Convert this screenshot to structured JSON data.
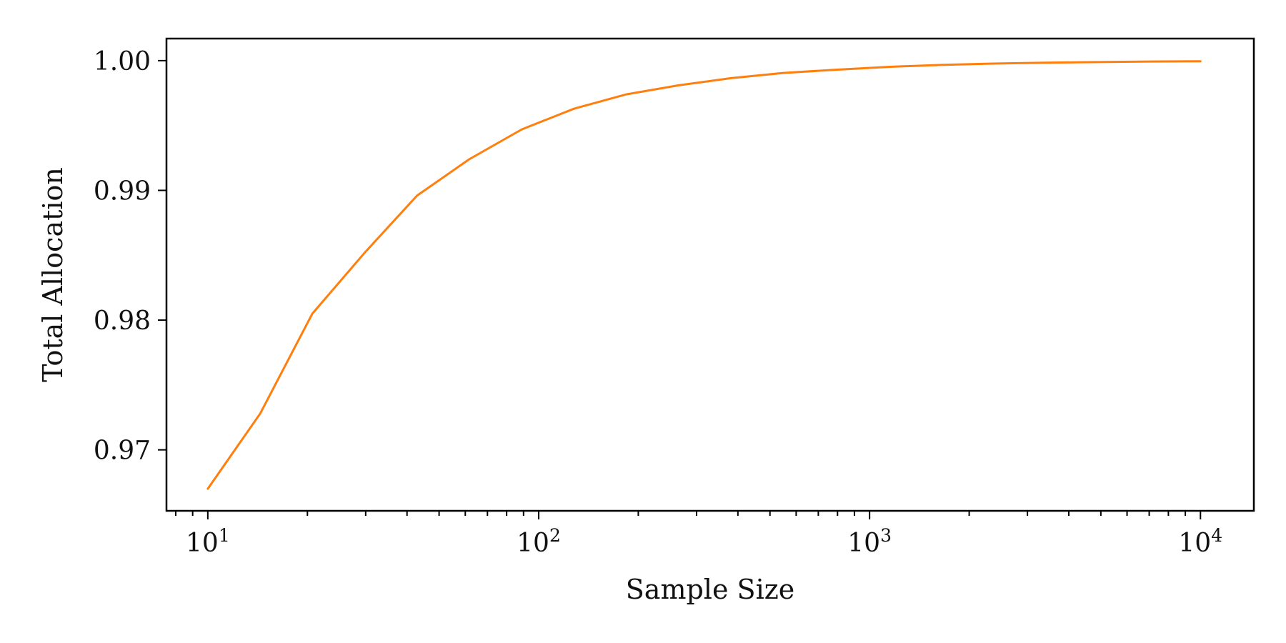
{
  "chart_data": {
    "type": "line",
    "title": "",
    "xlabel": "Sample Size",
    "ylabel": "Total Allocation",
    "xscale": "log",
    "xlim": [
      7.5,
      14500
    ],
    "ylim": [
      0.9653,
      1.0017
    ],
    "x_ticks": [
      {
        "value": 10,
        "base": "10",
        "exp": "1"
      },
      {
        "value": 100,
        "base": "10",
        "exp": "2"
      },
      {
        "value": 1000,
        "base": "10",
        "exp": "3"
      },
      {
        "value": 10000,
        "base": "10",
        "exp": "4"
      }
    ],
    "y_ticks": [
      {
        "value": 0.97,
        "label": "0.97"
      },
      {
        "value": 0.98,
        "label": "0.98"
      },
      {
        "value": 0.99,
        "label": "0.99"
      },
      {
        "value": 1.0,
        "label": "1.00"
      }
    ],
    "grid": false,
    "series": [
      {
        "color": "#ff7f0e",
        "x": [
          10,
          14.4,
          20.7,
          29.8,
          42.9,
          61.7,
          88.9,
          128,
          184,
          265,
          381,
          549,
          791,
          1138,
          1638,
          2359,
          3393,
          4894,
          7040,
          10000
        ],
        "y": [
          0.967,
          0.9728,
          0.9805,
          0.9852,
          0.9896,
          0.9924,
          0.9947,
          0.9963,
          0.9974,
          0.9981,
          0.99865,
          0.99905,
          0.9993,
          0.99952,
          0.99967,
          0.99977,
          0.99984,
          0.99989,
          0.99993,
          0.99995
        ]
      }
    ]
  }
}
